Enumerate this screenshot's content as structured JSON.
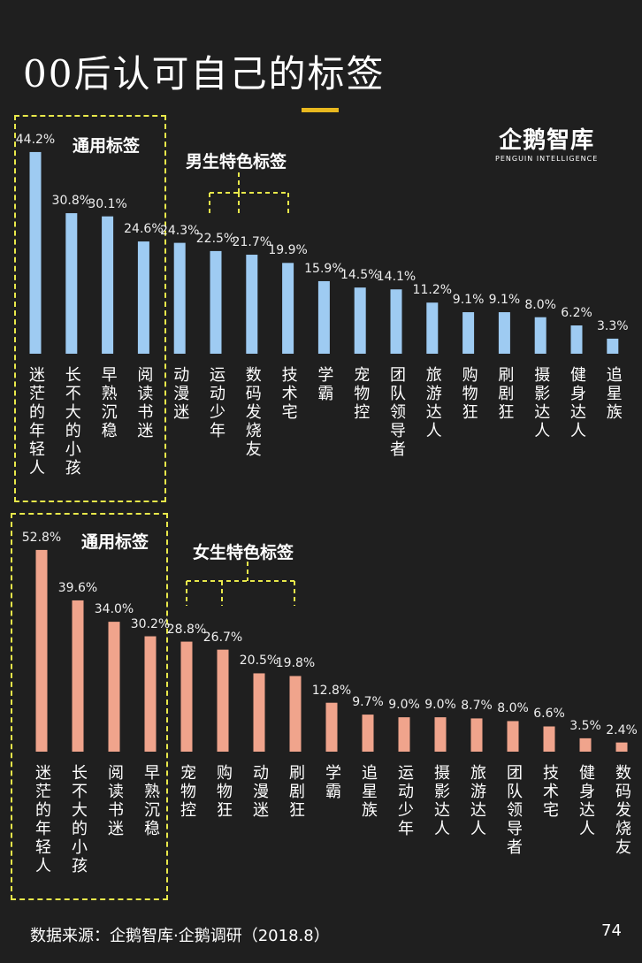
{
  "title": "00后认可自己的标签",
  "logo": {
    "cn": "企鹅智库",
    "en": "PENGUIN INTELLIGENCE"
  },
  "footer": {
    "source": "数据来源：企鹅智库·企鹅调研（2018.8）",
    "page": "74"
  },
  "accent": "#e8b81f",
  "chart_data": [
    {
      "type": "bar",
      "group_labels": {
        "common": "通用标签",
        "special": "男生特色标签"
      },
      "color": "#9ecbf2",
      "categories": [
        "迷茫的年轻人",
        "长不大的小孩",
        "早熟沉稳",
        "阅读书迷",
        "动漫迷",
        "运动少年",
        "数码发烧友",
        "技术宅",
        "学霸",
        "宠物控",
        "团队领导者",
        "旅游达人",
        "购物狂",
        "刷剧狂",
        "摄影达人",
        "健身达人",
        "追星族"
      ],
      "values": [
        44.2,
        30.8,
        30.1,
        24.6,
        24.3,
        22.5,
        21.7,
        19.9,
        15.9,
        14.5,
        14.1,
        11.2,
        9.1,
        9.1,
        8.0,
        6.2,
        3.3
      ],
      "labels": [
        "44.2%",
        "30.8%",
        "30.1%",
        "24.6%",
        "24.3%",
        "22.5%",
        "21.7%",
        "19.9%",
        "15.9%",
        "14.5%",
        "14.1%",
        "11.2%",
        "9.1%",
        "9.1%",
        "8.0%",
        "6.2%",
        "3.3%"
      ]
    },
    {
      "type": "bar",
      "group_labels": {
        "common": "通用标签",
        "special": "女生特色标签"
      },
      "color": "#f0a48c",
      "categories": [
        "迷茫的年轻人",
        "长不大的小孩",
        "阅读书迷",
        "早熟沉稳",
        "宠物控",
        "购物狂",
        "动漫迷",
        "刷剧狂",
        "学霸",
        "追星族",
        "运动少年",
        "摄影达人",
        "旅游达人",
        "团队领导者",
        "技术宅",
        "健身达人",
        "数码发烧友"
      ],
      "values": [
        52.8,
        39.6,
        34.0,
        30.2,
        28.8,
        26.7,
        20.5,
        19.8,
        12.8,
        9.7,
        9.0,
        9.0,
        8.7,
        8.0,
        6.6,
        3.5,
        2.4
      ],
      "labels": [
        "52.8%",
        "39.6%",
        "34.0%",
        "30.2%",
        "28.8%",
        "26.7%",
        "20.5%",
        "19.8%",
        "12.8%",
        "9.7%",
        "9.0%",
        "9.0%",
        "8.7%",
        "8.0%",
        "6.6%",
        "3.5%",
        "2.4%"
      ]
    }
  ]
}
